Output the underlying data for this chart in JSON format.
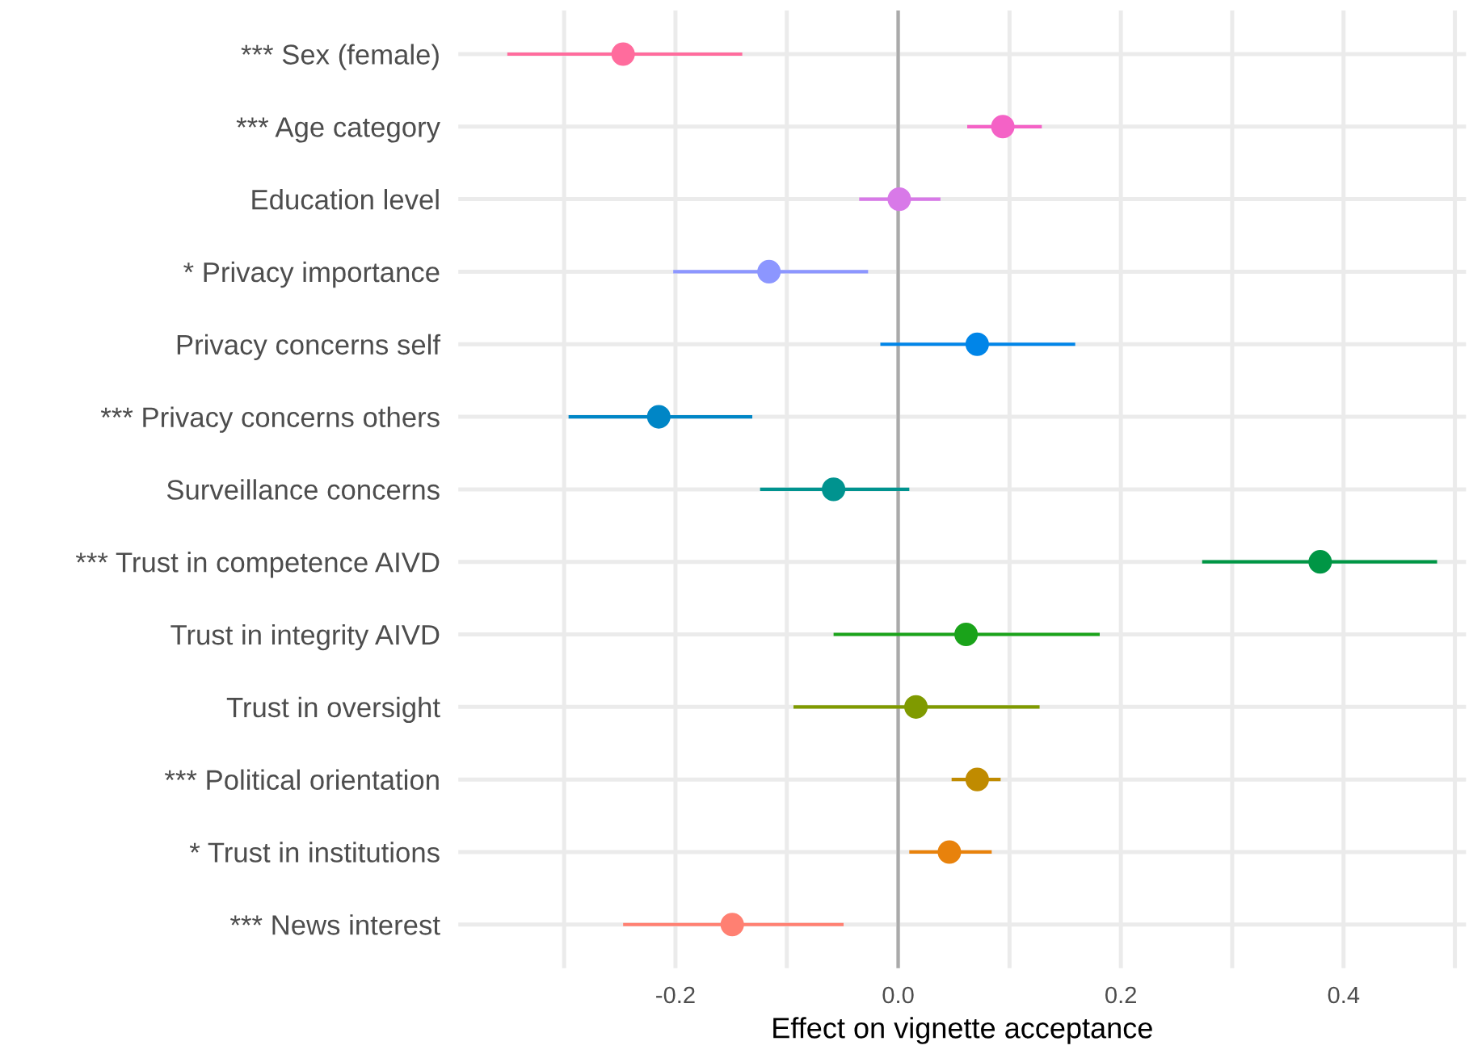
{
  "chart_data": {
    "type": "scatter",
    "orientation": "horizontal",
    "xlabel": "Effect on vignette acceptance",
    "categories": [
      "*** Sex (female)",
      "*** Age category",
      "Education level",
      "* Privacy importance",
      "Privacy concerns self",
      "*** Privacy concerns others",
      "Surveillance concerns",
      "*** Trust in competence AIVD",
      "Trust in integrity AIVD",
      "Trust in oversight",
      "*** Political orientation",
      "* Trust in institutions",
      "*** News interest"
    ],
    "values": [
      -0.247,
      0.094,
      0.001,
      -0.116,
      0.071,
      -0.215,
      -0.058,
      0.379,
      0.061,
      0.016,
      0.071,
      0.046,
      -0.149
    ],
    "errors": [
      [
        -0.351,
        -0.14
      ],
      [
        0.062,
        0.129
      ],
      [
        -0.035,
        0.038
      ],
      [
        -0.202,
        -0.027
      ],
      [
        -0.016,
        0.159
      ],
      [
        -0.296,
        -0.131
      ],
      [
        -0.124,
        0.01
      ],
      [
        0.273,
        0.484
      ],
      [
        -0.058,
        0.181
      ],
      [
        -0.094,
        0.127
      ],
      [
        0.048,
        0.092
      ],
      [
        0.01,
        0.084
      ],
      [
        -0.247,
        -0.049
      ]
    ],
    "colors": [
      "#ff6c9d",
      "#f462c6",
      "#d879e8",
      "#8c96ff",
      "#0085e8",
      "#0086c6",
      "#00938f",
      "#009645",
      "#1aa31a",
      "#7f9a00",
      "#c08b00",
      "#e8820c",
      "#ff8072"
    ],
    "xlim": [
      -0.395,
      0.51
    ],
    "xticks": [
      {
        "value": -0.3,
        "label": null
      },
      {
        "value": -0.2,
        "label": "-0.2"
      },
      {
        "value": -0.1,
        "label": null
      },
      {
        "value": 0,
        "label": "0.0"
      },
      {
        "value": 0.1,
        "label": null
      },
      {
        "value": 0.2,
        "label": "0.2"
      },
      {
        "value": 0.3,
        "label": null
      },
      {
        "value": 0.4,
        "label": "0.4"
      },
      {
        "value": 0.5,
        "label": null
      }
    ],
    "ref_lines": [
      {
        "axis": "x",
        "value": 0,
        "color": "#aaaaaa"
      }
    ],
    "grid": true,
    "marker": "circle"
  }
}
